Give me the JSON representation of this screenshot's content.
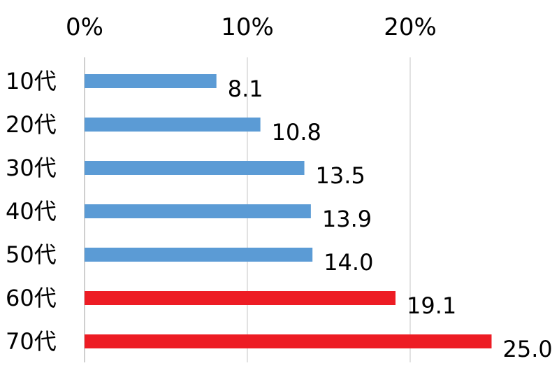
{
  "chart_data": {
    "type": "bar",
    "orientation": "horizontal",
    "title": "",
    "xlabel": "",
    "ylabel": "",
    "categories": [
      "10代",
      "20代",
      "30代",
      "40代",
      "50代",
      "60代",
      "70代"
    ],
    "values": [
      8.1,
      10.8,
      13.5,
      13.9,
      14.0,
      19.1,
      25.0
    ],
    "value_labels": [
      "8.1",
      "10.8",
      "13.5",
      "13.9",
      "14.0",
      "19.1",
      "25.0"
    ],
    "bar_colors": [
      "#5b9bd5",
      "#5b9bd5",
      "#5b9bd5",
      "#5b9bd5",
      "#5b9bd5",
      "#ed1c24",
      "#ed1c24"
    ],
    "xlim": [
      0,
      25
    ],
    "x_ticks": [
      0,
      10,
      20
    ],
    "x_tick_labels": [
      "0%",
      "10%",
      "20%"
    ],
    "x_axis_position": "top",
    "grid": true,
    "legend": "none"
  }
}
